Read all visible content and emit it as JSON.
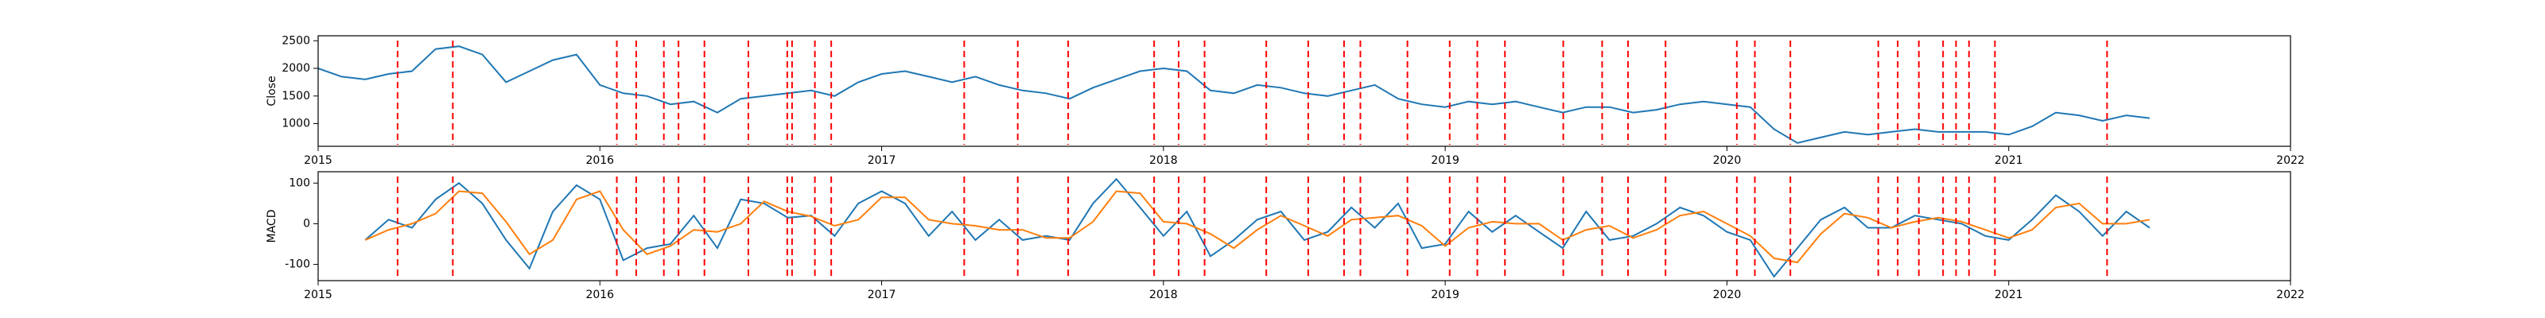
{
  "chart_data": [
    {
      "type": "line",
      "ylabel": "Close",
      "color": "#1f77b4",
      "marker_color": "#ff0000",
      "x": [
        2015,
        2015.083,
        2015.167,
        2015.25,
        2015.333,
        2015.417,
        2015.5,
        2015.583,
        2015.667,
        2015.75,
        2015.833,
        2015.917,
        2016,
        2016.083,
        2016.167,
        2016.25,
        2016.333,
        2016.417,
        2016.5,
        2016.583,
        2016.667,
        2016.75,
        2016.833,
        2016.917,
        2017,
        2017.083,
        2017.167,
        2017.25,
        2017.333,
        2017.417,
        2017.5,
        2017.583,
        2017.667,
        2017.75,
        2017.833,
        2017.917,
        2018,
        2018.083,
        2018.167,
        2018.25,
        2018.333,
        2018.417,
        2018.5,
        2018.583,
        2018.667,
        2018.75,
        2018.833,
        2018.917,
        2019,
        2019.083,
        2019.167,
        2019.25,
        2019.333,
        2019.417,
        2019.5,
        2019.583,
        2019.667,
        2019.75,
        2019.833,
        2019.917,
        2020,
        2020.083,
        2020.167,
        2020.25,
        2020.333,
        2020.417,
        2020.5,
        2020.583,
        2020.667,
        2020.75,
        2020.833,
        2020.917,
        2021,
        2021.083,
        2021.167,
        2021.25,
        2021.333,
        2021.417,
        2021.5
      ],
      "values": [
        2000,
        1850,
        1800,
        1900,
        1950,
        2350,
        2400,
        2250,
        1750,
        1950,
        2150,
        2250,
        1700,
        1550,
        1500,
        1350,
        1400,
        1200,
        1450,
        1500,
        1550,
        1600,
        1500,
        1750,
        1900,
        1950,
        1850,
        1750,
        1850,
        1700,
        1600,
        1550,
        1450,
        1650,
        1800,
        1950,
        2000,
        1950,
        1600,
        1550,
        1700,
        1650,
        1550,
        1500,
        1600,
        1700,
        1450,
        1350,
        1300,
        1400,
        1350,
        1400,
        1300,
        1200,
        1300,
        1300,
        1200,
        1250,
        1350,
        1400,
        1350,
        1300,
        900,
        650,
        750,
        850,
        800,
        850,
        900,
        850,
        850,
        850,
        800,
        950,
        1200,
        1150,
        1050,
        1150,
        1100
      ],
      "markers": [
        2015.282,
        2015.478,
        2016.06,
        2016.129,
        2016.227,
        2016.279,
        2016.371,
        2016.527,
        2016.665,
        2016.682,
        2016.763,
        2016.821,
        2017.293,
        2017.483,
        2017.662,
        2017.967,
        2018.054,
        2018.146,
        2018.365,
        2018.514,
        2018.641,
        2018.699,
        2018.866,
        2019.016,
        2019.114,
        2019.212,
        2019.419,
        2019.557,
        2019.649,
        2019.782,
        2020.035,
        2020.099,
        2020.225,
        2020.537,
        2020.606,
        2020.681,
        2020.767,
        2020.813,
        2020.859,
        2020.951,
        2021.349
      ],
      "xlim": [
        2015,
        2022
      ],
      "xticks": [
        2015,
        2016,
        2017,
        2018,
        2019,
        2020,
        2021,
        2022
      ],
      "ylim": [
        590,
        2590
      ],
      "yticks": [
        1000,
        1500,
        2000,
        2500
      ]
    },
    {
      "type": "line",
      "ylabel": "MACD",
      "x": [
        2015.167,
        2015.25,
        2015.333,
        2015.417,
        2015.5,
        2015.583,
        2015.667,
        2015.75,
        2015.833,
        2015.917,
        2016,
        2016.083,
        2016.167,
        2016.25,
        2016.333,
        2016.417,
        2016.5,
        2016.583,
        2016.667,
        2016.75,
        2016.833,
        2016.917,
        2017,
        2017.083,
        2017.167,
        2017.25,
        2017.333,
        2017.417,
        2017.5,
        2017.583,
        2017.667,
        2017.75,
        2017.833,
        2017.917,
        2018,
        2018.083,
        2018.167,
        2018.25,
        2018.333,
        2018.417,
        2018.5,
        2018.583,
        2018.667,
        2018.75,
        2018.833,
        2018.917,
        2019,
        2019.083,
        2019.167,
        2019.25,
        2019.333,
        2019.417,
        2019.5,
        2019.583,
        2019.667,
        2019.75,
        2019.833,
        2019.917,
        2020,
        2020.083,
        2020.167,
        2020.25,
        2020.333,
        2020.417,
        2020.5,
        2020.583,
        2020.667,
        2020.75,
        2020.833,
        2020.917,
        2021,
        2021.083,
        2021.167,
        2021.25,
        2021.333,
        2021.417,
        2021.5
      ],
      "series": [
        {
          "color": "#1f77b4",
          "values": [
            -40,
            10,
            -10,
            60,
            100,
            50,
            -40,
            -110,
            30,
            95,
            60,
            -90,
            -60,
            -50,
            20,
            -60,
            60,
            50,
            15,
            20,
            -30,
            50,
            80,
            50,
            -30,
            30,
            -40,
            10,
            -40,
            -30,
            -40,
            50,
            110,
            40,
            -30,
            30,
            -80,
            -40,
            10,
            30,
            -40,
            -20,
            40,
            -10,
            50,
            -60,
            -50,
            30,
            -20,
            20,
            -20,
            -60,
            30,
            -40,
            -30,
            0,
            40,
            20,
            -20,
            -40,
            -130,
            -60,
            10,
            40,
            -10,
            -10,
            20,
            10,
            0,
            -30,
            -40,
            10,
            70,
            30,
            -30,
            30,
            -10
          ]
        },
        {
          "color": "#ff7f0e",
          "values": [
            -40,
            -15,
            0,
            25,
            80,
            75,
            5,
            -75,
            -40,
            60,
            80,
            -15,
            -75,
            -55,
            -15,
            -20,
            0,
            55,
            30,
            18,
            -5,
            10,
            65,
            65,
            10,
            0,
            -5,
            -15,
            -15,
            -35,
            -35,
            5,
            80,
            75,
            5,
            0,
            -25,
            -60,
            -15,
            20,
            -5,
            -30,
            10,
            15,
            20,
            -5,
            -55,
            -10,
            5,
            0,
            0,
            -40,
            -15,
            -5,
            -35,
            -15,
            20,
            30,
            0,
            -30,
            -85,
            -95,
            -25,
            25,
            15,
            -10,
            5,
            15,
            5,
            -15,
            -35,
            -15,
            40,
            50,
            0,
            0,
            10
          ]
        }
      ],
      "xlim": [
        2015,
        2022
      ],
      "xticks": [
        2015,
        2016,
        2017,
        2018,
        2019,
        2020,
        2021,
        2022
      ],
      "ylim": [
        -140,
        128
      ],
      "yticks": [
        -100,
        0,
        100
      ]
    }
  ]
}
